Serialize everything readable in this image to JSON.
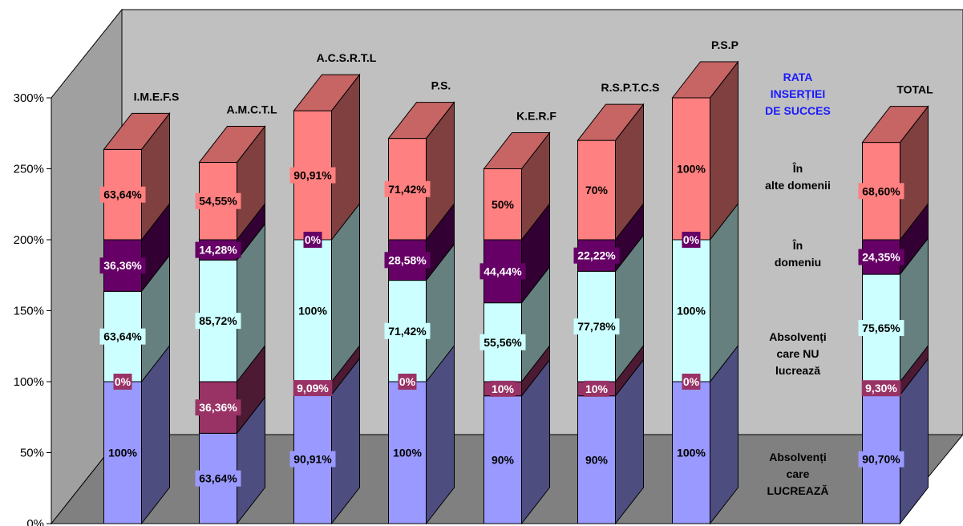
{
  "chart_data": {
    "type": "bar",
    "stacked": true,
    "three_d": true,
    "ylim": [
      0,
      300
    ],
    "yticks": [
      "0%",
      "50%",
      "100%",
      "150%",
      "200%",
      "250%",
      "300%"
    ],
    "categories": [
      "I.M.E.F.S",
      "A.M.C.T.L",
      "A.C.S.R.T.L",
      "P.S.",
      "K.E.R.F",
      "R.S.P.T.C.S",
      "P.S.P",
      "TOTAL"
    ],
    "series": [
      {
        "name": "Absolvenți care LUCREAZĂ",
        "color": "#9999ff",
        "text_color": "#000000",
        "values": [
          100,
          63.64,
          90.91,
          100,
          90,
          90,
          100,
          90.7
        ],
        "labels": [
          "100%",
          "63,64%",
          "90,91%",
          "100%",
          "90%",
          "90%",
          "100%",
          "90,70%"
        ]
      },
      {
        "name": "Absolvenți care NU lucrează",
        "color": "#993366",
        "text_color": "#ffffff",
        "values": [
          0,
          36.36,
          9.09,
          0,
          10,
          10,
          0,
          9.3
        ],
        "labels": [
          "0%",
          "36,36%",
          "9,09%",
          "0%",
          "10%",
          "10%",
          "0%",
          "9,30%"
        ]
      },
      {
        "name": "În domeniu",
        "color": "#ccffff",
        "text_color": "#000000",
        "values": [
          63.64,
          85.72,
          100,
          71.42,
          55.56,
          77.78,
          100,
          75.65
        ],
        "labels": [
          "63,64%",
          "85,72%",
          "100%",
          "71,42%",
          "55,56%",
          "77,78%",
          "100%",
          "75,65%"
        ]
      },
      {
        "name": "În alte domenii",
        "color": "#660066",
        "text_color": "#ffffff",
        "values": [
          36.36,
          14.28,
          0,
          28.58,
          44.44,
          22.22,
          0,
          24.35
        ],
        "labels": [
          "36,36%",
          "14,28%",
          "0%",
          "28,58%",
          "44,44%",
          "22,22%",
          "0%",
          "24,35%"
        ]
      },
      {
        "name": "RATA INSERȚIEI DE SUCCES",
        "color": "#ff8080",
        "text_color": "#000000",
        "values": [
          63.64,
          54.55,
          90.91,
          71.42,
          50,
          70,
          100,
          68.6
        ],
        "labels": [
          "63,64%",
          "54,55%",
          "90,91%",
          "71,42%",
          "50%",
          "70%",
          "100%",
          "68,60%"
        ]
      }
    ],
    "legend_placement": "right",
    "legend_lines": {
      "title": [
        "RATA",
        "INSERȚIEI",
        "DE SUCCES"
      ],
      "other_domains": [
        "În",
        "alte domenii"
      ],
      "domain": [
        "În",
        "domeniu"
      ],
      "not_working": [
        "Absolvenți",
        "care NU",
        "lucrează"
      ],
      "working": [
        "Absolvenți",
        "care",
        "LUCREAZĂ"
      ]
    }
  }
}
